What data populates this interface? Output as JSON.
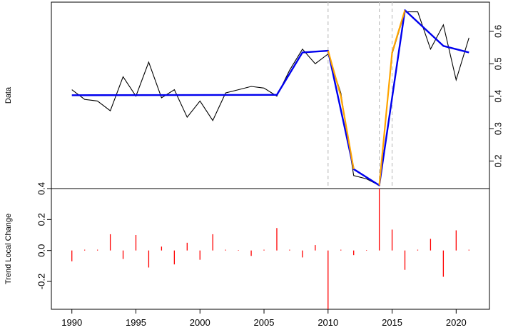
{
  "chart_data": {
    "type": "line",
    "panels": [
      {
        "id": "data-panel",
        "ylabel": "Data",
        "ylim": [
          0.115,
          0.69
        ],
        "yticks": [
          0.2,
          0.3,
          0.4,
          0.5,
          0.6
        ],
        "ytick_labels": [
          "0.2",
          "0.3",
          "0.4",
          "0.5",
          "0.6"
        ],
        "ytick_side": "right",
        "series": [
          {
            "role": "observed",
            "color": "#000000",
            "x": [
              1990,
              1991,
              1992,
              1993,
              1994,
              1995,
              1996,
              1997,
              1998,
              1999,
              2000,
              2001,
              2002,
              2003,
              2004,
              2005,
              2006,
              2007,
              2008,
              2009,
              2010,
              2011,
              2012,
              2013,
              2014,
              2015,
              2016,
              2017,
              2018,
              2019,
              2020,
              2021
            ],
            "y": [
              0.42,
              0.39,
              0.385,
              0.355,
              0.46,
              0.4,
              0.505,
              0.395,
              0.42,
              0.335,
              0.385,
              0.325,
              0.41,
              0.42,
              0.43,
              0.425,
              0.4,
              0.48,
              0.545,
              0.5,
              0.53,
              0.41,
              0.155,
              0.145,
              0.125,
              0.53,
              0.66,
              0.66,
              0.545,
              0.62,
              0.45,
              0.58
            ]
          },
          {
            "role": "trend",
            "color": "#0000ee",
            "x": [
              1990,
              2006,
              2008,
              2010,
              2012,
              2014,
              2016,
              2019,
              2021
            ],
            "y": [
              0.403,
              0.404,
              0.535,
              0.54,
              0.175,
              0.125,
              0.665,
              0.555,
              0.535
            ]
          },
          {
            "role": "trend-change",
            "color": "#ffa500",
            "segments": [
              {
                "x": [
                  2010,
                  2011,
                  2012
                ],
                "y": [
                  0.54,
                  0.4,
                  0.175
                ]
              },
              {
                "x": [
                  2014,
                  2015,
                  2016
                ],
                "y": [
                  0.125,
                  0.535,
                  0.665
                ]
              }
            ]
          }
        ]
      },
      {
        "id": "change-panel",
        "ylabel": "Trend Local Change",
        "ylim": [
          -0.38,
          0.4
        ],
        "yticks": [
          -0.2,
          0.0,
          0.2,
          0.4
        ],
        "ytick_labels": [
          "-0.2",
          "0.0",
          "0.2",
          "0.4"
        ],
        "ytick_side": "left",
        "bar_color": "#ff0000",
        "x": [
          1990,
          1991,
          1992,
          1993,
          1994,
          1995,
          1996,
          1997,
          1998,
          1999,
          2000,
          2001,
          2002,
          2003,
          2004,
          2005,
          2006,
          2007,
          2008,
          2009,
          2010,
          2011,
          2012,
          2013,
          2014,
          2015,
          2016,
          2017,
          2018,
          2019,
          2020,
          2021
        ],
        "values": [
          -0.07,
          0.005,
          0.005,
          0.105,
          -0.055,
          0.1,
          -0.11,
          0.025,
          -0.09,
          0.05,
          -0.06,
          0.105,
          0.005,
          0.003,
          -0.035,
          0.005,
          0.145,
          0.005,
          -0.045,
          0.035,
          -0.49,
          0.005,
          -0.03,
          0.003,
          0.49,
          0.135,
          -0.125,
          0.005,
          0.075,
          -0.17,
          0.13,
          0.005
        ]
      }
    ],
    "changepoints": [
      2010,
      2014,
      2015
    ],
    "changepoint_color": "#c0c0c0",
    "xlim": [
      1988.4,
      2022.6
    ],
    "xticks": [
      1990,
      1995,
      2000,
      2005,
      2010,
      2015,
      2020
    ],
    "xtick_labels": [
      "1990",
      "1995",
      "2000",
      "2005",
      "2010",
      "2015",
      "2020"
    ],
    "grid": false,
    "legend": "none"
  }
}
